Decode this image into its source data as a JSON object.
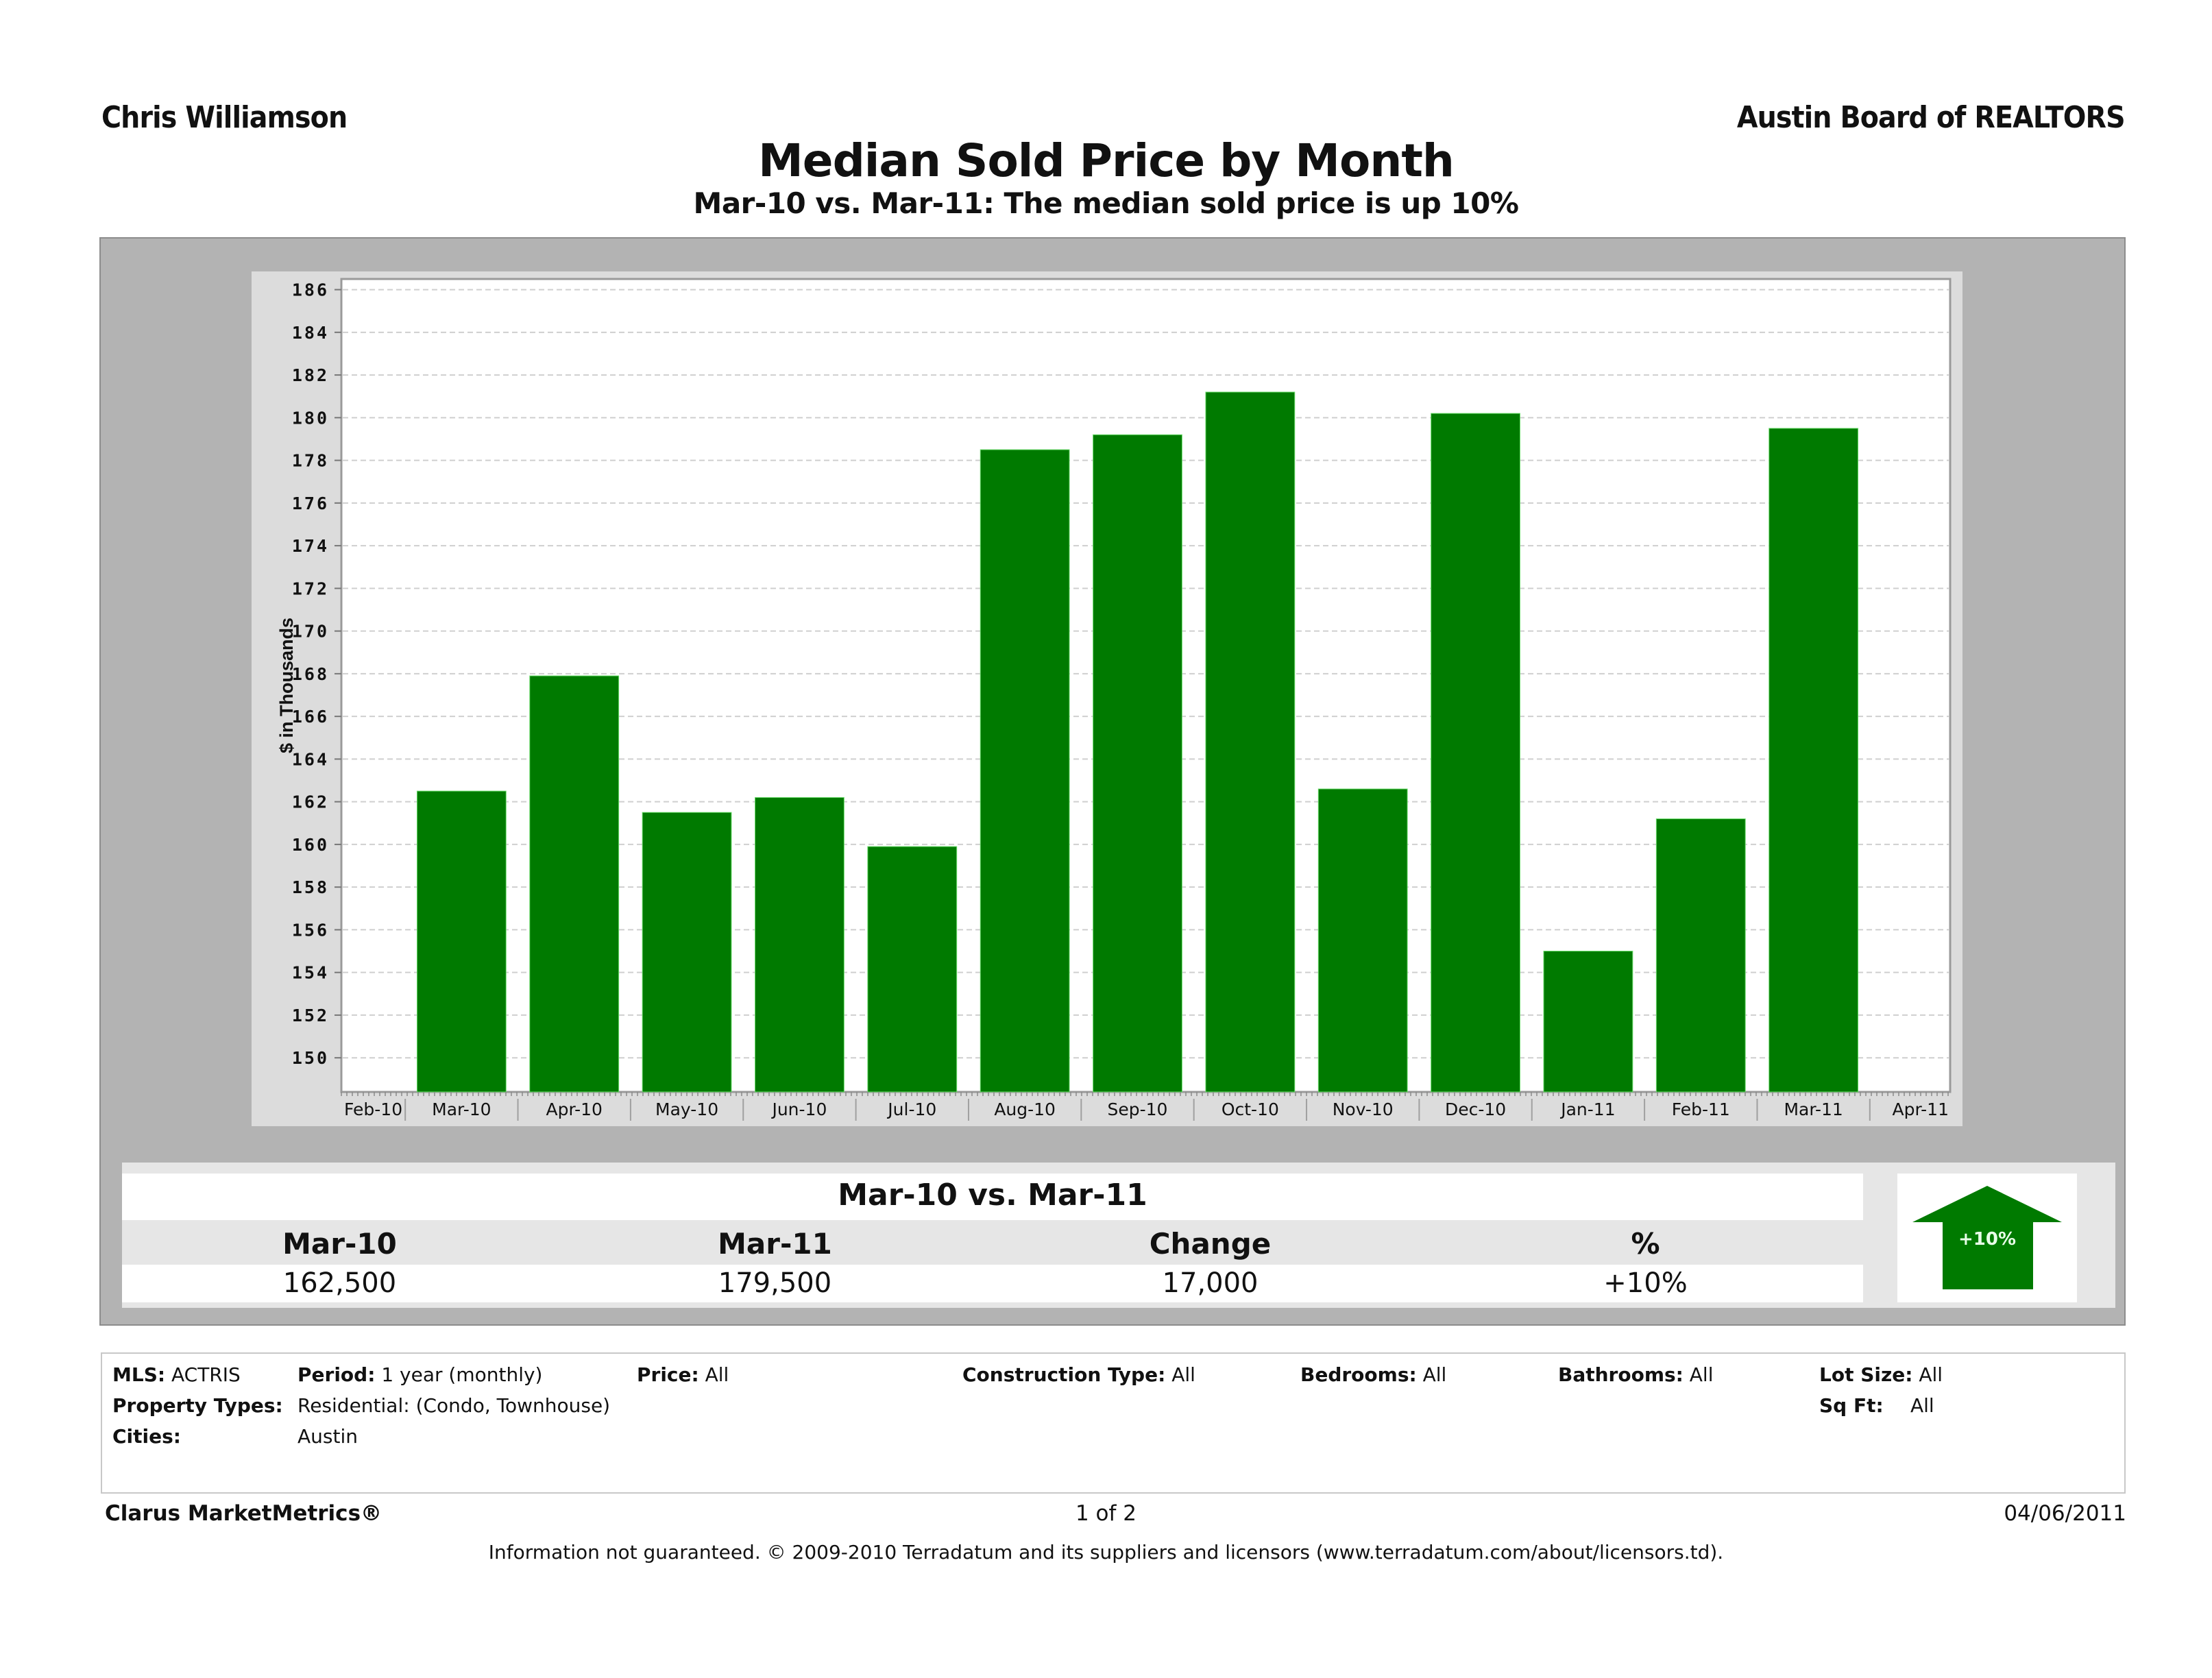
{
  "header": {
    "agent_name": "Chris Williamson",
    "organization": "Austin Board of REALTORS",
    "title": "Median Sold Price by Month",
    "subtitle": "Mar-10 vs. Mar-11:  The median sold price is up 10%"
  },
  "chart_data": {
    "type": "bar",
    "title": "Median Sold Price by Month",
    "xlabel": "",
    "ylabel": "$ in Thousands",
    "ylim": [
      148.4,
      186.5
    ],
    "yticks": [
      150,
      152,
      154,
      156,
      158,
      160,
      162,
      164,
      166,
      168,
      170,
      172,
      174,
      176,
      178,
      180,
      182,
      184,
      186
    ],
    "x_tick_labels": [
      "Feb-10",
      "Mar-10",
      "Apr-10",
      "May-10",
      "Jun-10",
      "Jul-10",
      "Aug-10",
      "Sep-10",
      "Oct-10",
      "Nov-10",
      "Dec-10",
      "Jan-11",
      "Feb-11",
      "Mar-11",
      "Apr-11"
    ],
    "categories": [
      "Mar-10",
      "Apr-10",
      "May-10",
      "Jun-10",
      "Jul-10",
      "Aug-10",
      "Sep-10",
      "Oct-10",
      "Nov-10",
      "Dec-10",
      "Jan-11",
      "Feb-11",
      "Mar-11"
    ],
    "values": [
      162.5,
      167.9,
      161.5,
      162.2,
      159.9,
      178.5,
      179.2,
      181.2,
      162.6,
      180.2,
      155.0,
      161.2,
      179.5
    ],
    "bar_color": "#007a00",
    "grid": true,
    "legend": "none"
  },
  "summary": {
    "heading": "Mar-10 vs. Mar-11",
    "columns": [
      "Mar-10",
      "Mar-11",
      "Change",
      "%"
    ],
    "values": [
      "162,500",
      "179,500",
      "17,000",
      "+10%"
    ],
    "badge": {
      "label": "+10%",
      "icon": "up-arrow-icon",
      "color": "#007a00"
    }
  },
  "filters": {
    "mls_label": "MLS:",
    "mls_value": "ACTRIS",
    "period_label": "Period:",
    "period_value": "1 year (monthly)",
    "price_label": "Price:",
    "price_value": "All",
    "construction_label": "Construction Type:",
    "construction_value": "All",
    "bedrooms_label": "Bedrooms:",
    "bedrooms_value": "All",
    "bathrooms_label": "Bathrooms:",
    "bathrooms_value": "All",
    "lot_label": "Lot Size:",
    "lot_value": "All",
    "proptypes_label": "Property Types:",
    "proptypes_value": "Residential: (Condo, Townhouse)",
    "sqft_label": "Sq Ft:",
    "sqft_value": "All",
    "cities_label": "Cities:",
    "cities_value": "Austin"
  },
  "footer": {
    "brand": "Clarus MarketMetrics®",
    "page": "1 of 2",
    "date": "04/06/2011",
    "disclaimer": "Information not guaranteed.  © 2009-2010 Terradatum and its suppliers and licensors (www.terradatum.com/about/licensors.td)."
  }
}
